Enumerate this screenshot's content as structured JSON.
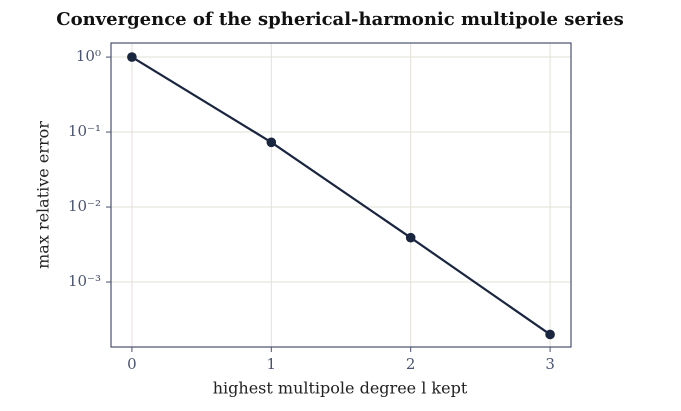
{
  "chart_data": {
    "type": "line",
    "title": "Convergence of the spherical-harmonic multipole series",
    "x_label": "highest multipole degree l kept",
    "y_label": "max relative error",
    "x": [
      0,
      1,
      2,
      3
    ],
    "series": [
      {
        "name": "max relative error",
        "color": "#1a2540",
        "values": [
          1,
          0.073,
          0.0039,
          0.0002
        ]
      }
    ],
    "xlim": [
      -0.15,
      3.15
    ],
    "xticks": [
      0,
      1,
      2,
      3
    ],
    "ylim": [
      0.000136,
      1.54
    ],
    "yticks": [
      {
        "value": 1,
        "label": "10⁰"
      },
      {
        "value": 0.1,
        "label": "10⁻¹"
      },
      {
        "value": 0.01,
        "label": "10⁻²"
      },
      {
        "value": 0.001,
        "label": "10⁻³"
      }
    ],
    "y_scale": "log",
    "grid": true
  }
}
